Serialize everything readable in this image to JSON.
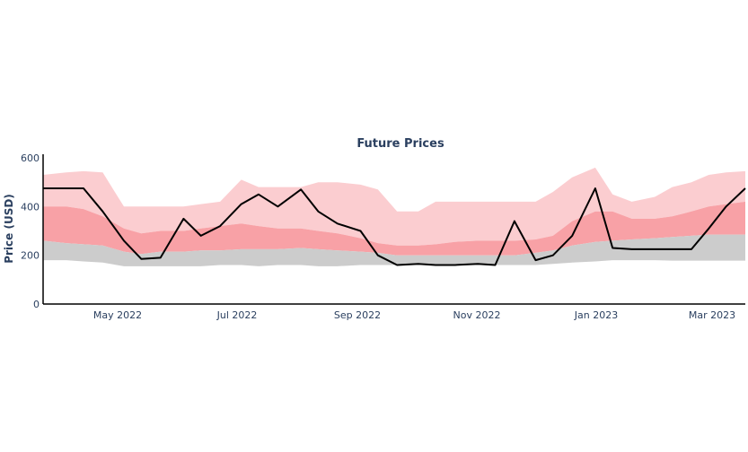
{
  "chart_data": {
    "type": "area",
    "title": "Future Prices",
    "xlabel": "",
    "ylabel": "Price (USD)",
    "ylim": [
      0,
      600
    ],
    "yticks": [
      0,
      200,
      400,
      600
    ],
    "xticks": [
      "May 2022",
      "Jul 2022",
      "Sep 2022",
      "Nov 2022",
      "Jan 2023",
      "Mar 2023"
    ],
    "grid": false,
    "legend": "none",
    "x": [
      "2022-03-20",
      "2022-04-01",
      "2022-04-10",
      "2022-04-20",
      "2022-05-01",
      "2022-05-10",
      "2022-05-20",
      "2022-06-01",
      "2022-06-10",
      "2022-06-20",
      "2022-07-01",
      "2022-07-10",
      "2022-07-20",
      "2022-08-01",
      "2022-08-10",
      "2022-08-20",
      "2022-09-01",
      "2022-09-10",
      "2022-09-20",
      "2022-10-01",
      "2022-10-10",
      "2022-10-20",
      "2022-11-01",
      "2022-11-10",
      "2022-11-20",
      "2022-12-01",
      "2022-12-10",
      "2022-12-20",
      "2023-01-01",
      "2023-01-10",
      "2023-01-20",
      "2023-02-01",
      "2023-02-10",
      "2023-02-20",
      "2023-03-01",
      "2023-03-10",
      "2023-03-20"
    ],
    "series": [
      {
        "name": "band_low_min",
        "color": "#cccccc",
        "values": [
          180,
          180,
          175,
          170,
          155,
          155,
          155,
          155,
          155,
          160,
          160,
          155,
          160,
          160,
          155,
          155,
          160,
          160,
          160,
          160,
          160,
          160,
          160,
          160,
          160,
          160,
          165,
          170,
          175,
          180,
          180,
          180,
          178,
          178,
          178,
          178,
          178
        ]
      },
      {
        "name": "band_low_max",
        "color": "#cccccc",
        "values": [
          260,
          250,
          245,
          240,
          215,
          205,
          215,
          215,
          220,
          220,
          225,
          225,
          225,
          230,
          225,
          220,
          215,
          210,
          200,
          200,
          200,
          200,
          200,
          200,
          200,
          210,
          220,
          240,
          255,
          260,
          265,
          270,
          275,
          280,
          285,
          285,
          285
        ]
      },
      {
        "name": "band_mid_max",
        "color": "#f8a1a6",
        "values": [
          400,
          400,
          390,
          360,
          310,
          290,
          300,
          300,
          310,
          320,
          330,
          320,
          310,
          310,
          300,
          290,
          270,
          250,
          240,
          240,
          245,
          255,
          260,
          260,
          260,
          265,
          280,
          340,
          380,
          380,
          350,
          350,
          360,
          380,
          400,
          410,
          420
        ]
      },
      {
        "name": "band_high_max",
        "color": "#fbcdd0",
        "values": [
          530,
          540,
          545,
          540,
          400,
          400,
          400,
          400,
          410,
          420,
          510,
          480,
          480,
          480,
          500,
          500,
          490,
          470,
          380,
          380,
          420,
          420,
          420,
          420,
          420,
          420,
          460,
          520,
          560,
          450,
          420,
          440,
          480,
          500,
          530,
          540,
          545
        ]
      },
      {
        "name": "Price",
        "color": "#000000",
        "values": [
          475,
          475,
          475,
          380,
          260,
          185,
          190,
          350,
          280,
          320,
          410,
          450,
          400,
          470,
          380,
          330,
          300,
          200,
          160,
          165,
          160,
          160,
          165,
          160,
          340,
          180,
          200,
          280,
          475,
          230,
          225,
          225,
          225,
          225,
          310,
          400,
          475
        ]
      }
    ]
  }
}
